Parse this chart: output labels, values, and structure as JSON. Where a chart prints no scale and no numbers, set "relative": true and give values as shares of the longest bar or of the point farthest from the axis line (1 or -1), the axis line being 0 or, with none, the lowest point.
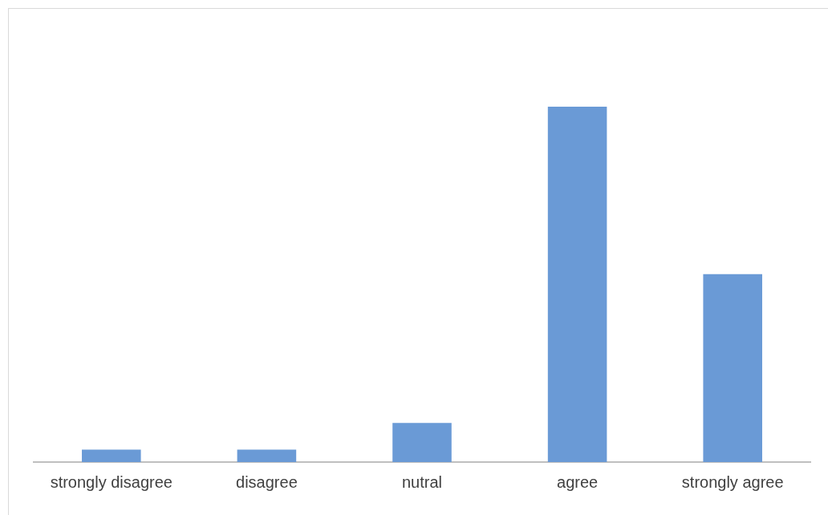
{
  "chart_data": {
    "type": "bar",
    "relative": true,
    "categories": [
      "strongly disagree",
      "disagree",
      "nutral",
      "agree",
      "strongly agree"
    ],
    "values": [
      0.035,
      0.035,
      0.11,
      1,
      0.529
    ],
    "color": "#6a9ad6",
    "grid": false,
    "legend": false
  }
}
